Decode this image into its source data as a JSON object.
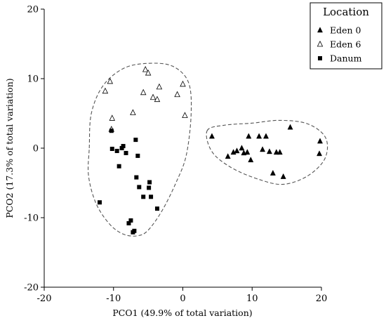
{
  "chart_data": {
    "type": "scatter",
    "title": "",
    "xlabel": "PCO1 (49.9% of total variation)",
    "ylabel": "PCO2 (17.3% of total variation)",
    "xlim": [
      -20,
      20
    ],
    "ylim": [
      -20,
      20
    ],
    "xticks": [
      -20,
      -10,
      0,
      10,
      20
    ],
    "yticks": [
      -20,
      -10,
      0,
      10,
      20
    ],
    "grid": false,
    "legend": {
      "title": "Location",
      "position": "top-right"
    },
    "series": [
      {
        "name": "Eden 0",
        "marker": "filled-triangle",
        "color": "#000000",
        "x": [
          4.2,
          6.5,
          7.3,
          7.8,
          8.5,
          8.8,
          9.3,
          9.5,
          9.8,
          11.0,
          11.5,
          12.0,
          12.5,
          13.0,
          13.5,
          14.0,
          14.5,
          15.5,
          19.8,
          19.7
        ],
        "y": [
          1.7,
          -1.2,
          -0.6,
          -0.4,
          0.0,
          -0.7,
          -0.6,
          1.7,
          -1.7,
          1.7,
          -0.2,
          1.7,
          -0.5,
          -3.6,
          -0.6,
          -0.6,
          -4.1,
          3.0,
          1.0,
          -0.8
        ]
      },
      {
        "name": "Eden 6",
        "marker": "open-triangle",
        "color": "#000000",
        "x": [
          -11.2,
          -10.5,
          -10.2,
          -10.3,
          -7.2,
          -5.7,
          -5.4,
          -5.0,
          -4.3,
          -3.4,
          -3.7,
          -0.8,
          0.0,
          0.3
        ],
        "y": [
          8.2,
          9.6,
          4.3,
          2.7,
          5.1,
          8.0,
          11.3,
          10.8,
          7.3,
          8.8,
          7.0,
          7.7,
          9.2,
          4.7
        ]
      },
      {
        "name": "Danum",
        "marker": "filled-square",
        "color": "#000000",
        "x": [
          -10.3,
          -10.2,
          -9.5,
          -9.2,
          -8.8,
          -8.6,
          -8.2,
          -6.8,
          -6.5,
          -6.7,
          -6.3,
          -5.7,
          -4.8,
          -4.9,
          -4.6,
          -3.7,
          -7.8,
          -7.5,
          -7.0,
          -7.2,
          -12.0
        ],
        "y": [
          2.5,
          -0.1,
          -0.4,
          -2.6,
          0.0,
          0.3,
          -0.7,
          1.2,
          -1.1,
          -4.2,
          -5.6,
          -7.0,
          -4.9,
          -5.7,
          -7.0,
          -8.7,
          -10.8,
          -10.4,
          -11.9,
          -12.1,
          -7.8
        ]
      }
    ],
    "hulls": [
      {
        "group": "Eden 6 + Danum",
        "points": [
          [
            -13.5,
            0
          ],
          [
            -13.2,
            5
          ],
          [
            -11.5,
            9
          ],
          [
            -8.5,
            11.5
          ],
          [
            -5,
            12.2
          ],
          [
            -1.5,
            11.8
          ],
          [
            0.8,
            9.5
          ],
          [
            1.2,
            5
          ],
          [
            0.5,
            -1
          ],
          [
            -1,
            -5
          ],
          [
            -3,
            -9
          ],
          [
            -5,
            -11.8
          ],
          [
            -6.5,
            -12.6
          ],
          [
            -8.5,
            -12.4
          ],
          [
            -10.5,
            -11
          ],
          [
            -12.5,
            -8
          ],
          [
            -13.6,
            -4
          ]
        ]
      },
      {
        "group": "Eden 0",
        "points": [
          [
            3.5,
            2.5
          ],
          [
            6,
            3.3
          ],
          [
            10,
            3.6
          ],
          [
            14,
            4
          ],
          [
            18,
            3.5
          ],
          [
            20.6,
            1.5
          ],
          [
            20.5,
            -1.5
          ],
          [
            18,
            -4
          ],
          [
            14.5,
            -5.2
          ],
          [
            11,
            -4.5
          ],
          [
            7,
            -2.8
          ],
          [
            4.2,
            -0.5
          ]
        ]
      }
    ]
  }
}
